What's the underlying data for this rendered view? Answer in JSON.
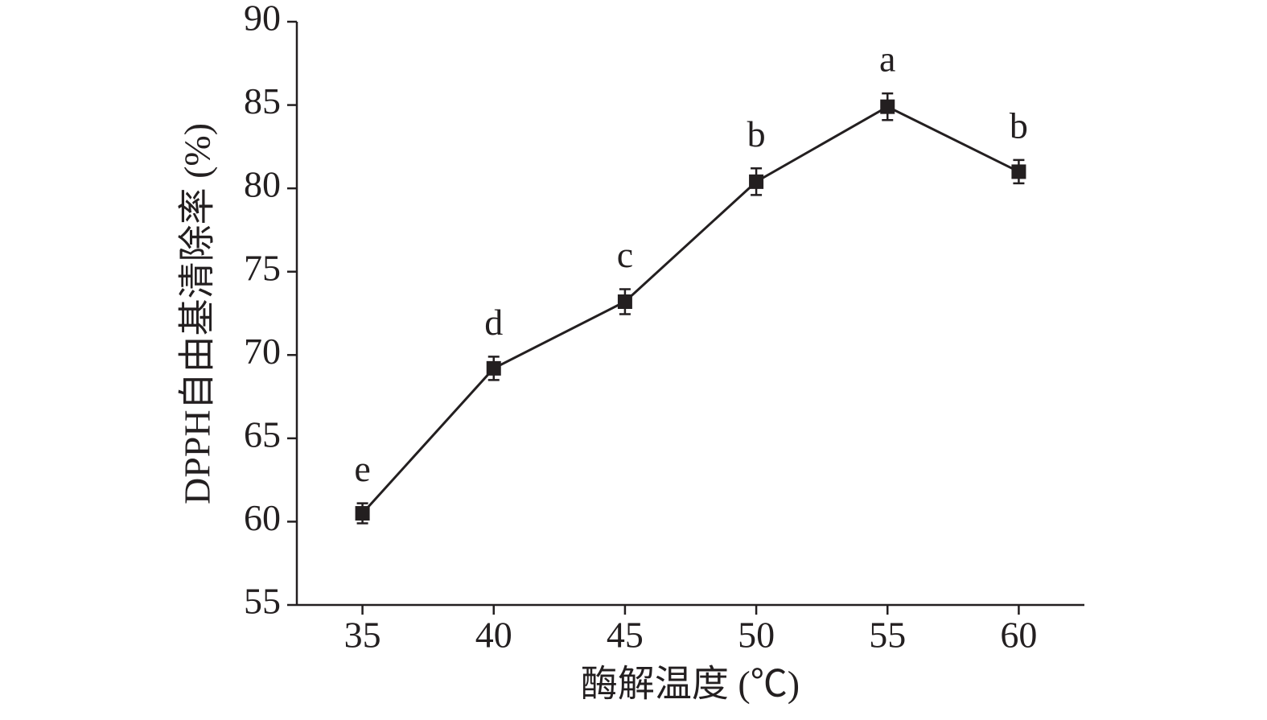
{
  "chart_data": {
    "type": "line",
    "x_label": "酶解温度 (℃)",
    "y_label": "DPPH自由基清除率 (%)",
    "x": [
      35,
      40,
      45,
      50,
      55,
      60
    ],
    "values": [
      60.5,
      69.2,
      73.2,
      80.4,
      84.9,
      81.0
    ],
    "errors": [
      0.6,
      0.7,
      0.75,
      0.8,
      0.8,
      0.7
    ],
    "labels": [
      "e",
      "d",
      "c",
      "b",
      "a",
      "b"
    ],
    "color": "#231f20",
    "xlim": [
      32.5,
      62.5
    ],
    "xticks": [
      35,
      40,
      45,
      50,
      55,
      60
    ],
    "ylim": [
      55,
      90
    ],
    "yticks": [
      55,
      60,
      65,
      70,
      75,
      80,
      85,
      90
    ],
    "grid": false
  }
}
